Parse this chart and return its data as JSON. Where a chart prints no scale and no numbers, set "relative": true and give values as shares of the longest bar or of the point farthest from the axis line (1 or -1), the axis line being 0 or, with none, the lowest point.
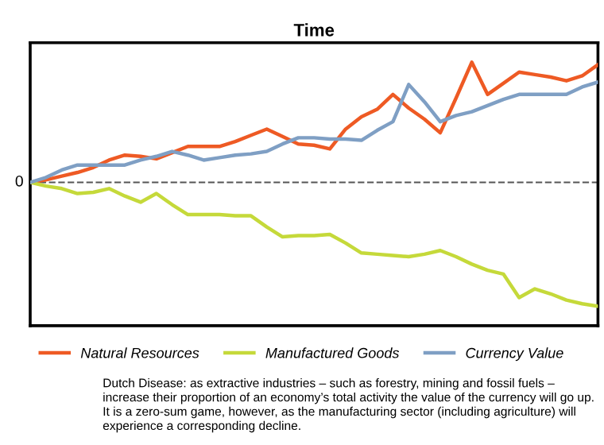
{
  "chart_data": {
    "type": "line",
    "title": "Time",
    "relative": true,
    "categories": [
      null,
      null,
      null,
      null,
      null,
      null,
      null,
      null,
      null,
      null,
      null,
      null,
      null,
      null,
      null,
      null,
      null,
      null,
      null,
      null,
      null,
      null,
      null,
      null,
      null,
      null,
      null,
      null,
      null,
      null,
      null,
      null,
      null,
      null,
      null,
      null,
      null
    ],
    "series": [
      {
        "name": "Natural Resources",
        "color": "#ee5a24",
        "values": [
          0,
          0.02,
          0.05,
          0.08,
          0.12,
          0.18,
          0.22,
          0.21,
          0.19,
          0.24,
          0.29,
          0.29,
          0.29,
          0.33,
          0.38,
          0.43,
          0.37,
          0.31,
          0.3,
          0.27,
          0.43,
          0.53,
          0.59,
          0.71,
          0.6,
          0.51,
          0.4,
          0.68,
          0.97,
          0.71,
          0.8,
          0.89,
          0.87,
          0.85,
          0.82,
          0.86,
          0.95
        ]
      },
      {
        "name": "Manufactured Goods",
        "color": "#c5d93a",
        "values": [
          0,
          -0.03,
          -0.05,
          -0.09,
          -0.08,
          -0.05,
          -0.11,
          -0.16,
          -0.09,
          -0.18,
          -0.26,
          -0.26,
          -0.26,
          -0.27,
          -0.27,
          -0.36,
          -0.44,
          -0.43,
          -0.43,
          -0.42,
          -0.49,
          -0.57,
          -0.58,
          -0.59,
          -0.6,
          -0.58,
          -0.55,
          -0.6,
          -0.66,
          -0.71,
          -0.74,
          -0.93,
          -0.86,
          -0.9,
          -0.95,
          -0.98,
          -1
        ]
      },
      {
        "name": "Currency Value",
        "color": "#7f9fc4",
        "values": [
          0,
          0.04,
          0.1,
          0.14,
          0.14,
          0.14,
          0.14,
          0.18,
          0.21,
          0.25,
          0.22,
          0.18,
          0.2,
          0.22,
          0.23,
          0.25,
          0.31,
          0.36,
          0.36,
          0.35,
          0.35,
          0.34,
          0.42,
          0.49,
          0.79,
          0.65,
          0.49,
          0.54,
          0.57,
          0.62,
          0.67,
          0.71,
          0.71,
          0.71,
          0.71,
          0.77,
          0.81
        ]
      }
    ],
    "ref_lines": [
      {
        "axis": "y",
        "value": 0,
        "label": "0",
        "color": "#555555",
        "line_style": "dashed"
      }
    ],
    "legend": "bottom",
    "annotations": [
      "Dutch Disease: as extractive industries – such as forestry, mining and fossil fuels – increase their proportion of an economy’s total activity the value of the currency will go up. It is a zero-sum game, however, as the manufacturing sector (including agriculture) will experience a corresponding decline."
    ]
  }
}
